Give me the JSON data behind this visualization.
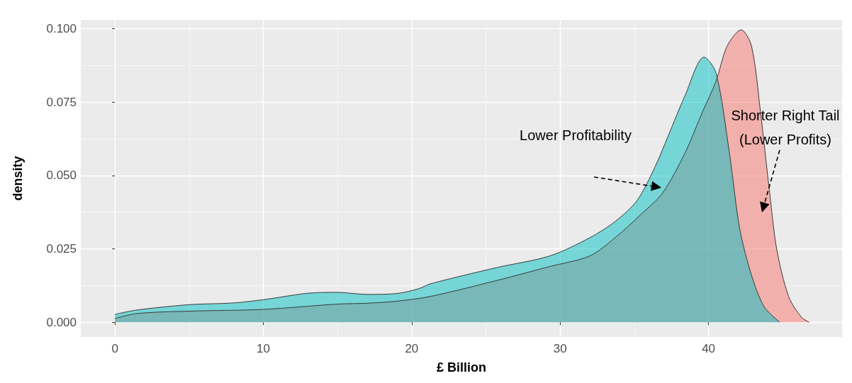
{
  "chart_data": {
    "type": "area",
    "xlabel": "£ Billion",
    "ylabel": "density",
    "xlim": [
      -2.3,
      49
    ],
    "ylim": [
      -0.005,
      0.103
    ],
    "xticks": [
      0,
      10,
      20,
      30,
      40
    ],
    "yticks": [
      {
        "value": 0,
        "label": "0.000"
      },
      {
        "value": 0.025,
        "label": "0.025"
      },
      {
        "value": 0.05,
        "label": "0.050"
      },
      {
        "value": 0.075,
        "label": "0.075"
      },
      {
        "value": 0.1,
        "label": "0.100"
      }
    ],
    "grid": true,
    "series": [
      {
        "color": "#f8766d",
        "x": [
          0,
          1.5,
          5,
          10,
          15,
          17,
          19,
          21.25,
          25.7,
          29.3,
          32,
          33.75,
          35.5,
          36.9,
          38.4,
          39.6,
          40.5,
          41.25,
          42.2,
          42.9,
          43.5,
          44.1,
          44.6,
          45.4,
          46.25,
          46.8
        ],
        "values": [
          0.0013,
          0.003,
          0.0038,
          0.0044,
          0.0062,
          0.0065,
          0.0072,
          0.0088,
          0.0142,
          0.019,
          0.0226,
          0.029,
          0.037,
          0.044,
          0.0575,
          0.0717,
          0.082,
          0.094,
          0.0996,
          0.094,
          0.0717,
          0.045,
          0.0248,
          0.0088,
          0.0018,
          0
        ]
      },
      {
        "color": "#00bfc4",
        "x": [
          0,
          1.5,
          5,
          8,
          10,
          13,
          15,
          17,
          19,
          20.5,
          21.25,
          25.7,
          29.3,
          32,
          33.75,
          35.2,
          36.4,
          37.3,
          38.4,
          39.7,
          40.5,
          41.4,
          42.1,
          42.9,
          43.75,
          44.8
        ],
        "values": [
          0.0027,
          0.0042,
          0.006,
          0.0066,
          0.0077,
          0.0099,
          0.0102,
          0.0095,
          0.0098,
          0.0115,
          0.0131,
          0.0186,
          0.0226,
          0.0288,
          0.0345,
          0.0416,
          0.053,
          0.0637,
          0.077,
          0.0903,
          0.085,
          0.058,
          0.0319,
          0.016,
          0.0053,
          0
        ]
      }
    ],
    "annotations": [
      "Lower Profitability",
      "Shorter Right Tail\n(Lower Profits)"
    ]
  }
}
